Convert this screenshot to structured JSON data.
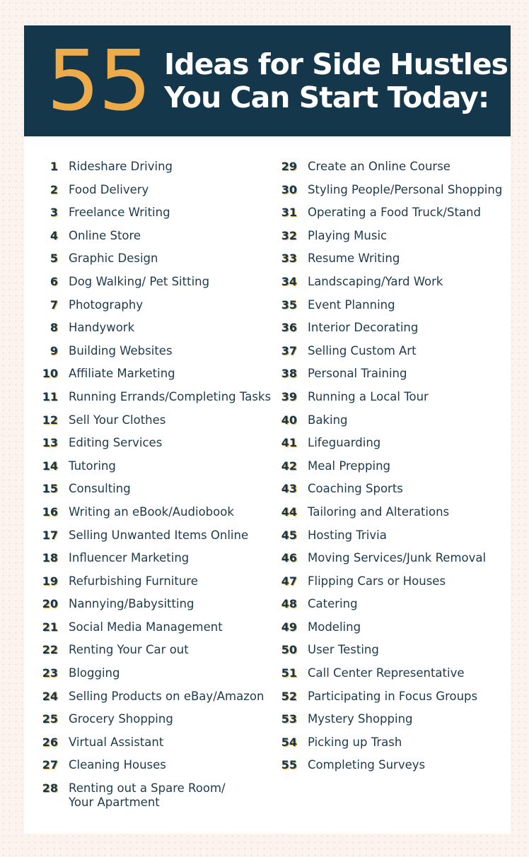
{
  "header": {
    "number": "55",
    "title_line1": "Ideas for Side Hustles",
    "title_line2": "You Can Start Today:"
  },
  "colors": {
    "navy": "#14374b",
    "accent": "#eeab4a",
    "background": "#fcf3ee"
  },
  "items": [
    "Rideshare Driving",
    "Food Delivery",
    "Freelance Writing",
    "Online Store",
    "Graphic Design",
    "Dog Walking/ Pet Sitting",
    "Photography",
    "Handywork",
    "Building Websites",
    "Affiliate Marketing",
    "Running Errands/Completing Tasks",
    "Sell Your Clothes",
    "Editing Services",
    "Tutoring",
    "Consulting",
    "Writing an eBook/Audiobook",
    "Selling Unwanted Items Online",
    "Influencer Marketing",
    "Refurbishing Furniture",
    "Nannying/Babysitting",
    "Social Media Management",
    "Renting Your Car out",
    "Blogging",
    "Selling Products on eBay/Amazon",
    "Grocery Shopping",
    "Virtual Assistant",
    "Cleaning Houses",
    "Renting out a Spare Room/\nYour Apartment",
    "Create an Online Course",
    "Styling People/Personal Shopping",
    "Operating a Food Truck/Stand",
    "Playing Music",
    "Resume Writing",
    "Landscaping/Yard Work",
    "Event Planning",
    "Interior Decorating",
    "Selling Custom Art",
    "Personal Training",
    "Running a Local Tour",
    "Baking",
    "Lifeguarding",
    "Meal Prepping",
    "Coaching Sports",
    "Tailoring and Alterations",
    "Hosting Trivia",
    "Moving Services/Junk Removal",
    "Flipping Cars or Houses",
    "Catering",
    "Modeling",
    "User Testing",
    "Call Center Representative",
    "Participating in Focus Groups",
    "Mystery Shopping",
    "Picking up Trash",
    "Completing Surveys"
  ]
}
